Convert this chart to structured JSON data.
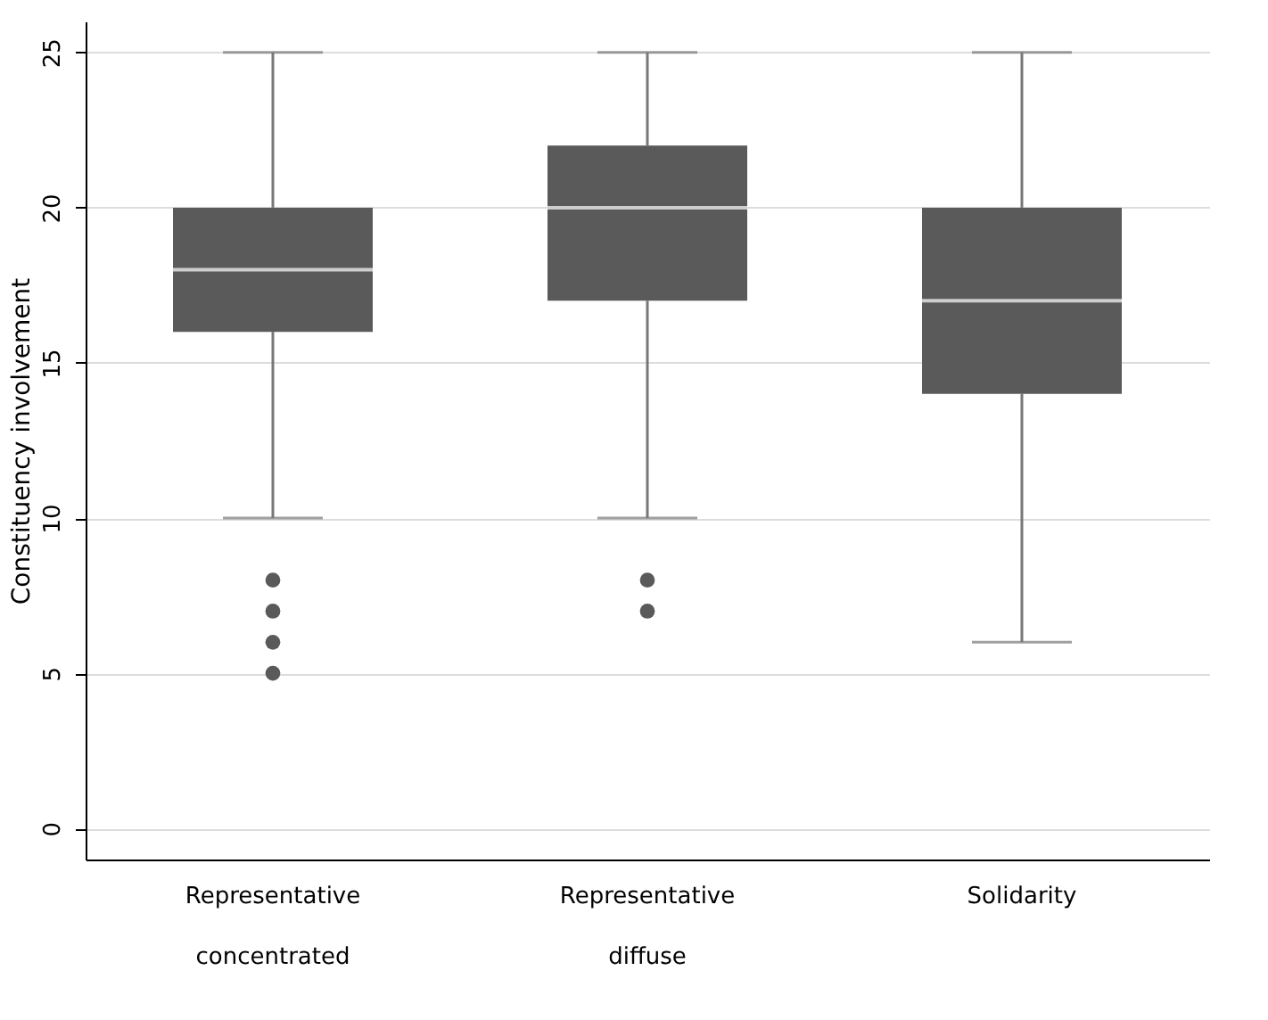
{
  "chart_data": {
    "type": "box",
    "ylabel": "Constituency involvement",
    "categories": [
      "Representative concentrated",
      "Representative diffuse",
      "Solidarity"
    ],
    "boxes": [
      {
        "low": 10,
        "q1": 16,
        "median": 18,
        "q3": 20,
        "high": 25,
        "outliers": [
          5,
          6,
          7,
          8
        ]
      },
      {
        "low": 10,
        "q1": 17,
        "median": 20,
        "q3": 22,
        "high": 25,
        "outliers": [
          7,
          8
        ]
      },
      {
        "low": 6,
        "q1": 14,
        "median": 17,
        "q3": 20,
        "high": 25
      }
    ],
    "color": "#5a5a5a",
    "ylim": [
      -1,
      26
    ],
    "yticks": [
      0,
      5,
      10,
      15,
      20,
      25
    ],
    "grid": "y"
  }
}
